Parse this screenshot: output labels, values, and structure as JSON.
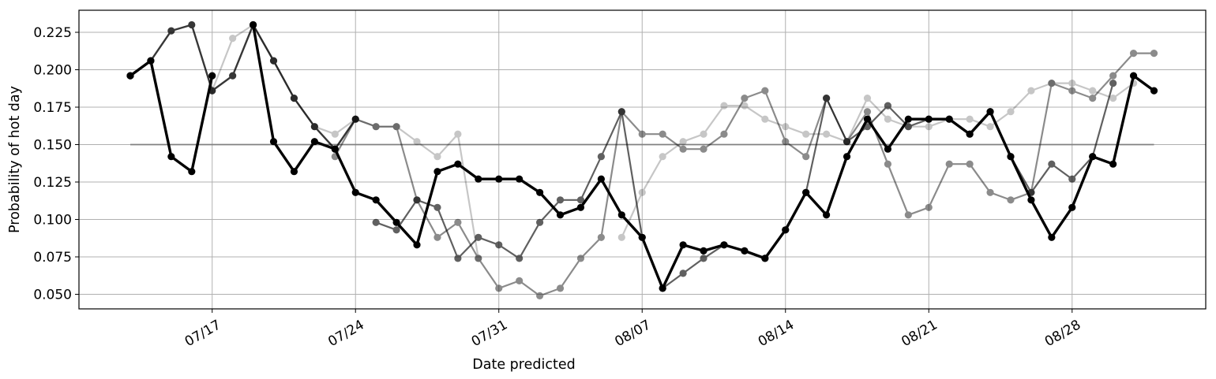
{
  "chart_data": {
    "type": "line",
    "xlabel": "Date predicted",
    "ylabel": "Probability of hot day",
    "x_start": "07/13",
    "ylim": [
      0.04,
      0.24
    ],
    "yticks": [
      0.05,
      0.075,
      0.1,
      0.125,
      0.15,
      0.175,
      0.2,
      0.225
    ],
    "yticklabels": [
      "0.050",
      "0.075",
      "0.100",
      "0.125",
      "0.150",
      "0.175",
      "0.200",
      "0.225"
    ],
    "xticks": [
      "07/17",
      "07/24",
      "07/31",
      "08/07",
      "08/14",
      "08/21",
      "08/28"
    ],
    "grid": true,
    "reference_line": 0.15,
    "reference_color": "#808080",
    "series": [
      {
        "color": "#000000",
        "opacity": 0.22,
        "linewidth": 2.2,
        "values": [
          null,
          null,
          null,
          null,
          0.186,
          0.221,
          0.23,
          0.206,
          0.181,
          0.162,
          0.157,
          0.167,
          0.162,
          0.162,
          0.152,
          0.142,
          0.157,
          0.074,
          null,
          null,
          null,
          null,
          null,
          null,
          0.088,
          0.118,
          0.142,
          0.152,
          0.157,
          0.176,
          0.176,
          0.167,
          0.162,
          0.157,
          0.157,
          0.152,
          0.181,
          0.167,
          0.162,
          0.162,
          0.167,
          0.167,
          0.162,
          0.172,
          0.186,
          0.191,
          0.191,
          0.186,
          0.181,
          0.191,
          null
        ]
      },
      {
        "color": "#000000",
        "opacity": 0.45,
        "linewidth": 2.2,
        "values": [
          null,
          null,
          null,
          null,
          null,
          null,
          null,
          null,
          null,
          null,
          0.142,
          0.167,
          0.162,
          0.162,
          0.113,
          0.088,
          0.098,
          0.074,
          0.054,
          0.059,
          0.049,
          0.054,
          0.074,
          0.088,
          0.172,
          0.157,
          0.157,
          0.147,
          0.147,
          0.157,
          0.181,
          0.186,
          0.152,
          0.142,
          0.181,
          0.152,
          0.172,
          0.137,
          0.103,
          0.108,
          0.137,
          0.137,
          0.118,
          0.113,
          0.118,
          0.191,
          0.186,
          0.181,
          0.196,
          0.211,
          0.211
        ]
      },
      {
        "color": "#000000",
        "opacity": 0.62,
        "linewidth": 2.2,
        "values": [
          null,
          null,
          null,
          null,
          null,
          null,
          null,
          null,
          null,
          null,
          null,
          null,
          0.098,
          0.093,
          0.113,
          0.108,
          0.074,
          0.088,
          0.083,
          0.074,
          0.098,
          0.113,
          0.113,
          0.142,
          0.172,
          0.088,
          0.054,
          0.064,
          0.074,
          0.083,
          0.079,
          0.074,
          0.093,
          0.118,
          0.181,
          0.152,
          0.162,
          0.176,
          0.162,
          0.167,
          0.167,
          0.157,
          0.172,
          0.142,
          0.118,
          0.137,
          0.127,
          0.142,
          0.191,
          null,
          null
        ]
      },
      {
        "color": "#000000",
        "opacity": 0.78,
        "linewidth": 2.4,
        "values": [
          0.196,
          0.206,
          0.226,
          0.23,
          0.186,
          0.196,
          0.23,
          0.206,
          0.181,
          0.162,
          0.147,
          0.167,
          null,
          null,
          null,
          null,
          null,
          null,
          null,
          null,
          null,
          null,
          null,
          null,
          null,
          null,
          null,
          null,
          null,
          null,
          null,
          null,
          null,
          null,
          null,
          null,
          null,
          null,
          null,
          null,
          null,
          null,
          null,
          null,
          null,
          null,
          null,
          null,
          null,
          null,
          null
        ]
      },
      {
        "color": "#000000",
        "opacity": 1.0,
        "linewidth": 3.4,
        "values": [
          0.196,
          0.206,
          0.142,
          0.132,
          0.196,
          null,
          0.23,
          0.152,
          0.132,
          0.152,
          0.147,
          0.118,
          0.113,
          0.098,
          0.083,
          0.132,
          0.137,
          0.127,
          0.127,
          0.127,
          0.118,
          0.103,
          0.108,
          0.127,
          0.103,
          0.088,
          0.054,
          0.083,
          0.079,
          0.083,
          0.079,
          0.074,
          0.093,
          0.118,
          0.103,
          0.142,
          0.167,
          0.147,
          0.167,
          0.167,
          0.167,
          0.157,
          0.172,
          0.142,
          0.113,
          0.088,
          0.108,
          0.142,
          0.137,
          0.196,
          0.186
        ]
      }
    ]
  }
}
